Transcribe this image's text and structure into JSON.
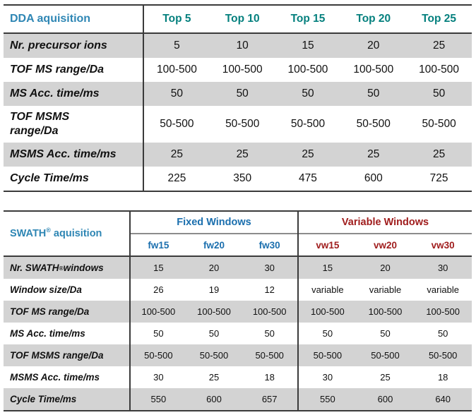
{
  "colors": {
    "title_blue": "#2E86B4",
    "teal": "#05807E",
    "group_blue": "#1B6FAE",
    "group_red": "#A01D1D",
    "row_shade": "#D3D3D3",
    "border_dark": "#3B3B3B"
  },
  "dda_table": {
    "title": "DDA aquisition",
    "columns": [
      "Top 5",
      "Top 10",
      "Top 15",
      "Top 20",
      "Top 25"
    ],
    "rows": [
      {
        "label": "Nr. precursor ions",
        "values": [
          "5",
          "10",
          "15",
          "20",
          "25"
        ]
      },
      {
        "label": "TOF MS range/Da",
        "values": [
          "100-500",
          "100-500",
          "100-500",
          "100-500",
          "100-500"
        ]
      },
      {
        "label": "MS Acc. time/ms",
        "values": [
          "50",
          "50",
          "50",
          "50",
          "50"
        ]
      },
      {
        "label": "TOF MSMS\nrange/Da",
        "values": [
          "50-500",
          "50-500",
          "50-500",
          "50-500",
          "50-500"
        ]
      },
      {
        "label": "MSMS Acc. time/ms",
        "values": [
          "25",
          "25",
          "25",
          "25",
          "25"
        ]
      },
      {
        "label": "Cycle Time/ms",
        "values": [
          "225",
          "350",
          "475",
          "600",
          "725"
        ]
      }
    ]
  },
  "swath_table": {
    "title": "SWATH® aquisition",
    "groups": [
      {
        "label": "Fixed Windows",
        "columns": [
          "fw15",
          "fw20",
          "fw30"
        ]
      },
      {
        "label": "Variable Windows",
        "columns": [
          "vw15",
          "vw20",
          "vw30"
        ]
      }
    ],
    "rows": [
      {
        "label": "Nr. SWATH® windows",
        "values": [
          "15",
          "20",
          "30",
          "15",
          "20",
          "30"
        ]
      },
      {
        "label": "Window size/Da",
        "values": [
          "26",
          "19",
          "12",
          "variable",
          "variable",
          "variable"
        ]
      },
      {
        "label": "TOF MS range/Da",
        "values": [
          "100-500",
          "100-500",
          "100-500",
          "100-500",
          "100-500",
          "100-500"
        ]
      },
      {
        "label": "MS Acc. time/ms",
        "values": [
          "50",
          "50",
          "50",
          "50",
          "50",
          "50"
        ]
      },
      {
        "label": "TOF MSMS range/Da",
        "values": [
          "50-500",
          "50-500",
          "50-500",
          "50-500",
          "50-500",
          "50-500"
        ]
      },
      {
        "label": "MSMS Acc. time/ms",
        "values": [
          "30",
          "25",
          "18",
          "30",
          "25",
          "18"
        ]
      },
      {
        "label": "Cycle Time/ms",
        "values": [
          "550",
          "600",
          "657",
          "550",
          "600",
          "640"
        ]
      }
    ]
  }
}
